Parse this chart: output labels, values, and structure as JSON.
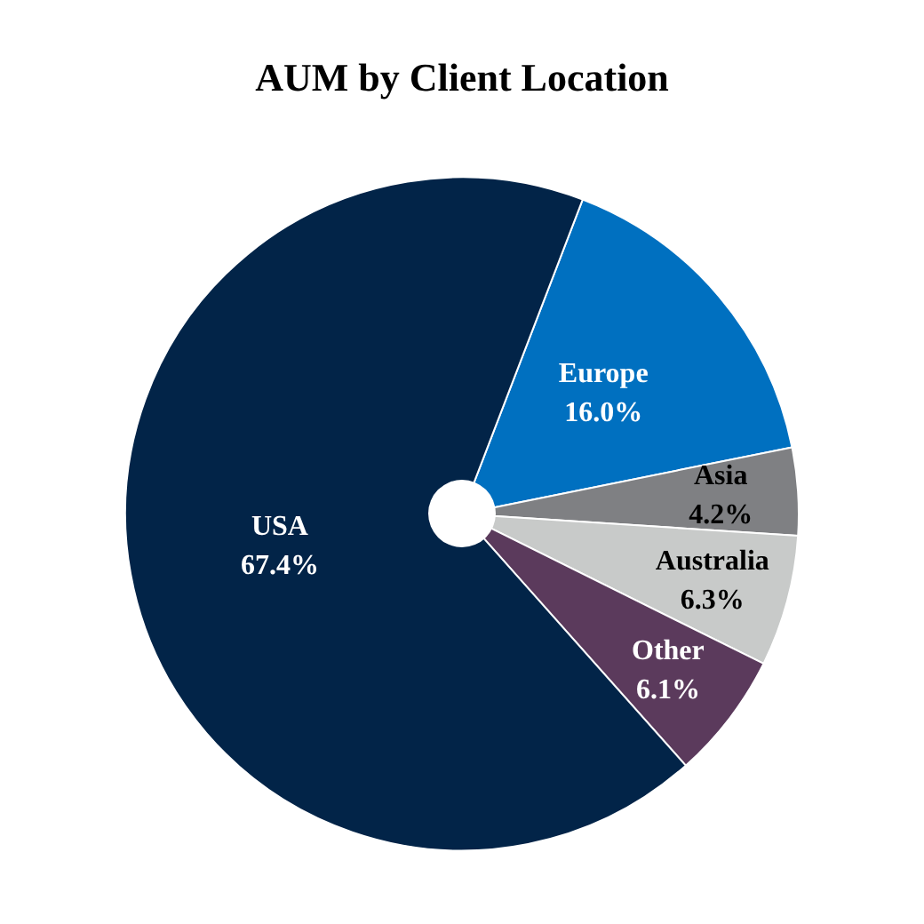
{
  "chart_data": {
    "type": "pie",
    "title": "AUM by Client Location",
    "categories": [
      "Europe",
      "Asia",
      "Australia",
      "Other",
      "USA"
    ],
    "values": [
      16.0,
      4.2,
      6.3,
      6.1,
      67.4
    ],
    "colors": [
      "#0070c0",
      "#7f8083",
      "#c8cac9",
      "#5b3a5c",
      "#022448"
    ],
    "value_labels": [
      "16.0%",
      "4.2%",
      "6.3%",
      "6.1%",
      "67.4%"
    ],
    "legend": false
  }
}
